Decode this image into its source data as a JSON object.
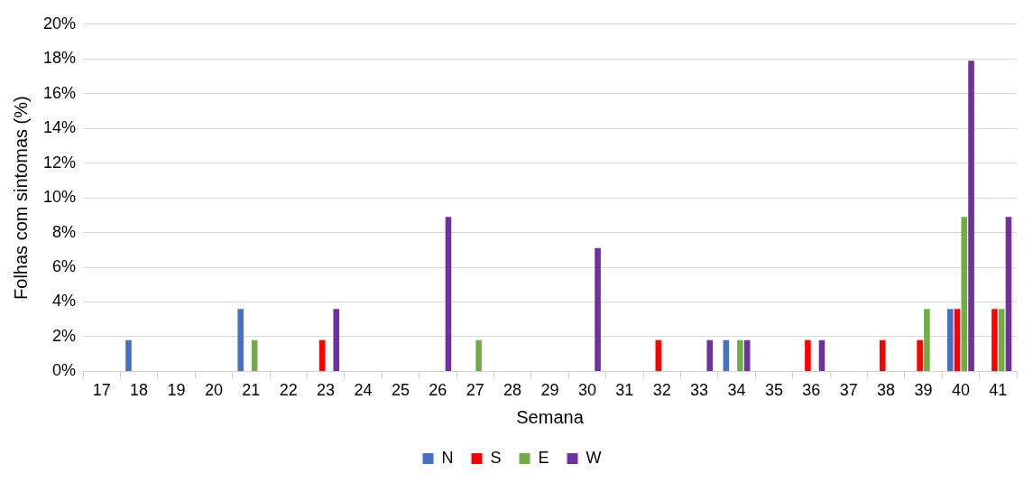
{
  "chart_data": {
    "type": "bar",
    "xlabel": "Semana",
    "ylabel": "Folhas com sintomas (%)",
    "categories": [
      "17",
      "18",
      "19",
      "20",
      "21",
      "22",
      "23",
      "24",
      "25",
      "26",
      "27",
      "28",
      "29",
      "30",
      "31",
      "32",
      "33",
      "34",
      "35",
      "36",
      "37",
      "38",
      "39",
      "40",
      "41"
    ],
    "series": [
      {
        "name": "N",
        "color": "#4472c4",
        "values": [
          0,
          1.8,
          0,
          0,
          3.6,
          0,
          0,
          0,
          0,
          0,
          0,
          0,
          0,
          0,
          0,
          0,
          0,
          1.8,
          0,
          0,
          0,
          0,
          0,
          3.6,
          0
        ]
      },
      {
        "name": "S",
        "color": "#ff0000",
        "values": [
          0,
          0,
          0,
          0,
          0,
          0,
          1.8,
          0,
          0,
          0,
          0,
          0,
          0,
          0,
          0,
          1.8,
          0,
          0,
          0,
          1.8,
          0,
          1.8,
          1.8,
          3.6,
          3.6
        ]
      },
      {
        "name": "E",
        "color": "#70ad47",
        "values": [
          0,
          0,
          0,
          0,
          1.8,
          0,
          0,
          0,
          0,
          0,
          1.8,
          0,
          0,
          0,
          0,
          0,
          0,
          1.8,
          0,
          0,
          0,
          0,
          3.6,
          8.9,
          3.6
        ]
      },
      {
        "name": "W",
        "color": "#7030a0",
        "values": [
          0,
          0,
          0,
          0,
          0,
          0,
          3.6,
          0,
          0,
          8.9,
          0,
          0,
          0,
          7.1,
          0,
          0,
          1.8,
          1.8,
          0,
          1.8,
          0,
          0,
          0,
          17.9,
          8.9
        ]
      }
    ],
    "ylim": [
      0,
      20
    ],
    "yticks": [
      {
        "value": 0,
        "label": "0%"
      },
      {
        "value": 2,
        "label": "2%"
      },
      {
        "value": 4,
        "label": "4%"
      },
      {
        "value": 6,
        "label": "6%"
      },
      {
        "value": 8,
        "label": "8%"
      },
      {
        "value": 10,
        "label": "10%"
      },
      {
        "value": 12,
        "label": "12%"
      },
      {
        "value": 14,
        "label": "14%"
      },
      {
        "value": 16,
        "label": "16%"
      },
      {
        "value": 18,
        "label": "18%"
      },
      {
        "value": 20,
        "label": "20%"
      }
    ],
    "grid": "y",
    "legend": "bottom"
  }
}
